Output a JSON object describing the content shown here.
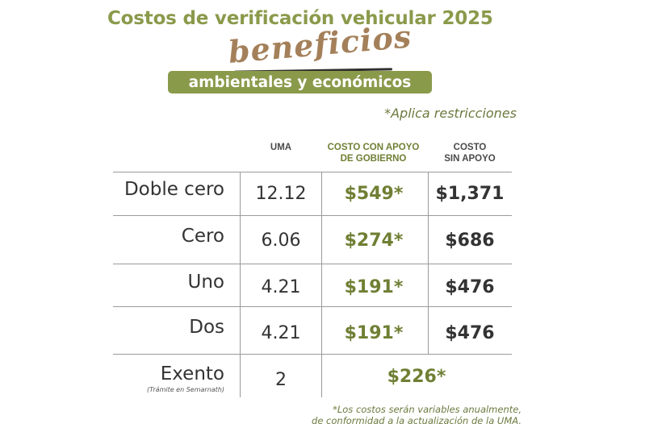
{
  "header": {
    "title": "Costos de verificación vehicular 2025",
    "script_word": "beneficios",
    "pill_text": "ambientales y económicos",
    "restrictions_note": "*Aplica restricciones"
  },
  "table": {
    "columns": {
      "uma": "UMA",
      "apoyo_line1": "COSTO CON APOYO",
      "apoyo_line2": "DE GOBIERNO",
      "sin_line1": "COSTO",
      "sin_line2": "SIN APOYO"
    },
    "rows": [
      {
        "label": "Doble cero",
        "uma": "12.12",
        "apoyo": "$549*",
        "sin": "$1,371"
      },
      {
        "label": "Cero",
        "uma": "6.06",
        "apoyo": "$274*",
        "sin": "$686"
      },
      {
        "label": "Uno",
        "uma": "4.21",
        "apoyo": "$191*",
        "sin": "$476"
      },
      {
        "label": "Dos",
        "uma": "4.21",
        "apoyo": "$191*",
        "sin": "$476"
      }
    ],
    "exento": {
      "label": "Exento",
      "sublabel": "(Trámite en Semarnath)",
      "uma": "2",
      "cost": "$226*"
    }
  },
  "footnote": {
    "line1": "*Los costos serán variables anualmente,",
    "line2": "de conformidad a la actualización de la UMA."
  },
  "colors": {
    "olive": "#8a9a4b",
    "olive_dark": "#6f7f34",
    "gold_brown": "#a4805a",
    "text_dark": "#333333"
  }
}
